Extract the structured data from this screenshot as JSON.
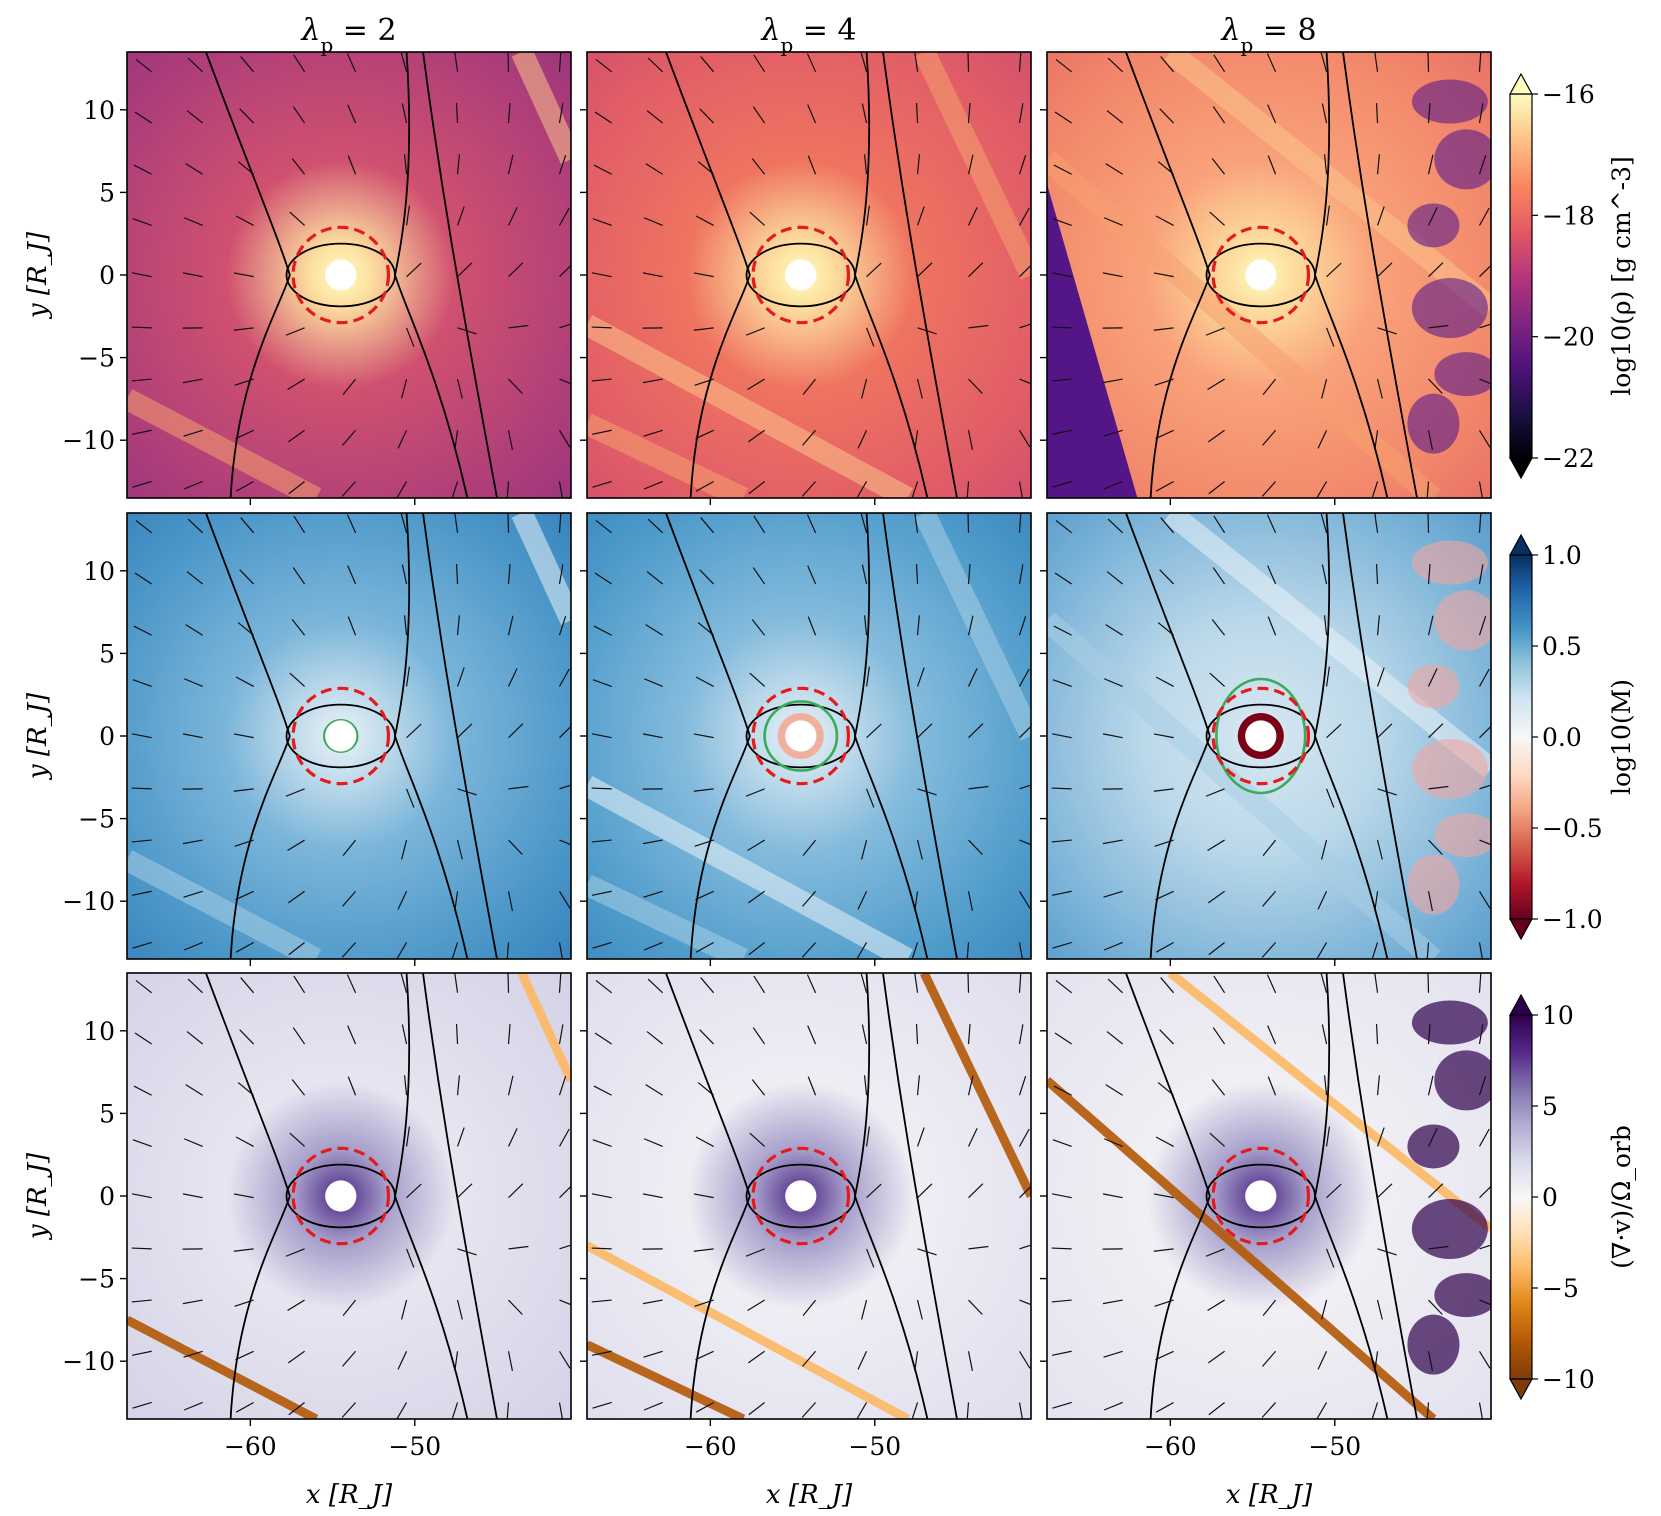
{
  "figure": {
    "columns": [
      {
        "title": "λ_p = 2",
        "sym": "λ",
        "sub": "p",
        "rest": " = 2"
      },
      {
        "title": "λ_p = 4",
        "sym": "λ",
        "sub": "p",
        "rest": " = 4"
      },
      {
        "title": "λ_p = 8",
        "sym": "λ",
        "sub": "p",
        "rest": " = 8"
      }
    ],
    "rows": [
      {
        "field": "density",
        "colormap": "magma",
        "colorbar_label": "log10(ρ) [g cm^-3]",
        "colorbar_ticks": [
          "−16",
          "−18",
          "−20",
          "−22"
        ],
        "colorbar_range": [
          -22,
          -16
        ],
        "colors": {
          "low": "#000004",
          "mid": "#b73779",
          "high": "#fcfdbf"
        }
      },
      {
        "field": "mach",
        "colormap": "RdBu",
        "colorbar_label": "log10(M)",
        "colorbar_ticks": [
          "1.0",
          "0.5",
          "0.0",
          "−0.5",
          "−1.0"
        ],
        "colorbar_range": [
          -1.0,
          1.0
        ],
        "colors": {
          "low": "#67001f",
          "mid": "#f7f7f7",
          "high": "#053061"
        }
      },
      {
        "field": "divergence",
        "colormap": "PuOr",
        "colorbar_label": "(∇·v)/Ω_orb",
        "colorbar_ticks": [
          "10",
          "5",
          "0",
          "−5",
          "−10"
        ],
        "colorbar_range": [
          -10,
          10
        ],
        "colors": {
          "low": "#7f3b08",
          "mid": "#f7f7f7",
          "high": "#2d004b"
        }
      }
    ],
    "x_axis": {
      "label": "x [R_J]",
      "ticks": [
        "−60",
        "−50"
      ],
      "tick_values": [
        -60,
        -50
      ],
      "range": [
        -67.5,
        -40.5
      ]
    },
    "y_axis": {
      "label": "y [R_J]",
      "ticks": [
        "10",
        "5",
        "0",
        "−5",
        "−10"
      ],
      "tick_values": [
        10,
        5,
        0,
        -5,
        -10
      ],
      "range": [
        -13.5,
        13.5
      ]
    },
    "annotations": {
      "planet_position": [
        -54.5,
        0
      ],
      "hill_sphere_radius": 2.9,
      "hill_sphere_color": "#e41a1c",
      "sonic_contour_color": "#3aaa5c"
    }
  },
  "chart_data": {
    "type": "heatmap",
    "layout": "3x3 grid of 2D maps with velocity quiver arrows, streamline separatrices, Hill sphere (red dashed) and sonic surface (green)",
    "columns": [
      "λp = 2",
      "λp = 4",
      "λp = 8"
    ],
    "rows": [
      "log10(ρ) [g cm^-3]",
      "log10(M)",
      "(∇·v)/Ω_orb"
    ],
    "xlabel": "x [R_J]",
    "ylabel": "y [R_J]",
    "xlim": [
      -67.5,
      -40.5
    ],
    "ylim": [
      -13.5,
      13.5
    ],
    "xticks": [
      -60,
      -50
    ],
    "yticks": [
      -10,
      -5,
      0,
      5,
      10
    ],
    "colorbars": [
      {
        "label": "log10(ρ) [g cm^-3]",
        "range": [
          -22,
          -16
        ],
        "ticks": [
          -16,
          -18,
          -20,
          -22
        ],
        "extend": "both"
      },
      {
        "label": "log10(M)",
        "range": [
          -1.0,
          1.0
        ],
        "ticks": [
          1.0,
          0.5,
          0.0,
          -0.5,
          -1.0
        ],
        "extend": "both"
      },
      {
        "label": "(∇·v)/Ω_orb",
        "range": [
          -10,
          10
        ],
        "ticks": [
          10,
          5,
          0,
          -5,
          -10
        ],
        "extend": "both"
      }
    ],
    "grid": false
  }
}
